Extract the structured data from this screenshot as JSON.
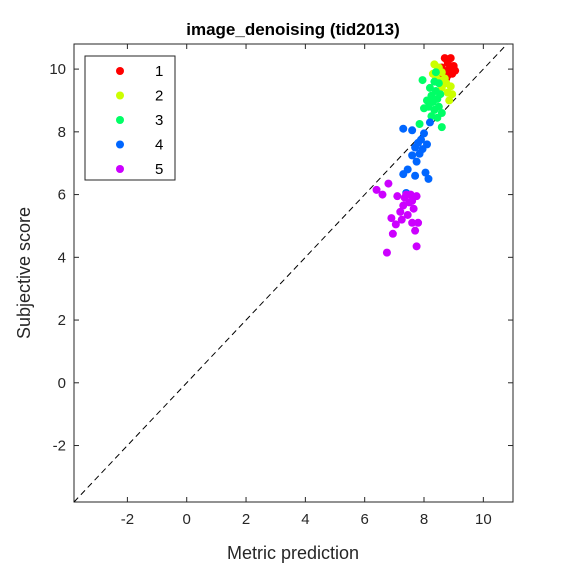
{
  "chart_data": {
    "type": "scatter",
    "title": "image_denoising (tid2013)",
    "xlabel": "Metric prediction",
    "ylabel": "Subjective score",
    "xlim": [
      -3.8,
      11
    ],
    "ylim": [
      -3.8,
      10.8
    ],
    "xticks": [
      -2,
      0,
      2,
      4,
      6,
      8,
      10
    ],
    "yticks": [
      -2,
      0,
      2,
      4,
      6,
      8,
      10
    ],
    "reference_line": "y = x (dashed)",
    "grid": false,
    "legend_position": "top-left",
    "series": [
      {
        "name": "1",
        "color": "#ff0000",
        "points": [
          [
            8.7,
            10.35
          ],
          [
            8.9,
            10.35
          ],
          [
            8.8,
            10.2
          ],
          [
            9.0,
            10.1
          ],
          [
            8.6,
            10.05
          ],
          [
            8.85,
            10.0
          ],
          [
            9.05,
            9.95
          ],
          [
            8.7,
            9.9
          ],
          [
            8.95,
            9.85
          ],
          [
            8.8,
            9.8
          ],
          [
            8.55,
            9.75
          ],
          [
            8.75,
            9.7
          ]
        ]
      },
      {
        "name": "2",
        "color": "#ccff00",
        "points": [
          [
            8.35,
            10.15
          ],
          [
            8.5,
            10.05
          ],
          [
            8.45,
            9.95
          ],
          [
            8.3,
            9.85
          ],
          [
            8.6,
            9.9
          ],
          [
            8.4,
            9.75
          ],
          [
            8.7,
            9.7
          ],
          [
            8.5,
            9.65
          ],
          [
            8.75,
            9.55
          ],
          [
            8.9,
            9.45
          ],
          [
            8.6,
            9.4
          ],
          [
            8.8,
            9.25
          ],
          [
            8.85,
            9.0
          ],
          [
            8.95,
            9.2
          ],
          [
            8.7,
            9.6
          ]
        ]
      },
      {
        "name": "3",
        "color": "#00ff66",
        "points": [
          [
            8.4,
            9.9
          ],
          [
            8.35,
            9.6
          ],
          [
            7.95,
            9.65
          ],
          [
            8.5,
            9.55
          ],
          [
            8.2,
            9.4
          ],
          [
            8.4,
            9.3
          ],
          [
            8.25,
            9.15
          ],
          [
            8.45,
            9.05
          ],
          [
            8.1,
            9.0
          ],
          [
            8.3,
            8.95
          ],
          [
            8.15,
            8.8
          ],
          [
            8.5,
            8.8
          ],
          [
            8.0,
            8.75
          ],
          [
            8.35,
            8.7
          ],
          [
            8.6,
            8.6
          ],
          [
            8.25,
            8.5
          ],
          [
            8.45,
            8.45
          ],
          [
            7.85,
            8.25
          ],
          [
            8.6,
            8.15
          ],
          [
            8.55,
            9.2
          ]
        ]
      },
      {
        "name": "4",
        "color": "#0066ff",
        "points": [
          [
            8.2,
            8.3
          ],
          [
            7.3,
            8.1
          ],
          [
            7.6,
            8.05
          ],
          [
            8.0,
            7.95
          ],
          [
            7.9,
            7.75
          ],
          [
            7.8,
            7.65
          ],
          [
            8.1,
            7.6
          ],
          [
            7.7,
            7.5
          ],
          [
            7.95,
            7.45
          ],
          [
            7.85,
            7.3
          ],
          [
            7.6,
            7.25
          ],
          [
            7.75,
            7.05
          ],
          [
            7.45,
            6.8
          ],
          [
            8.05,
            6.7
          ],
          [
            7.7,
            6.6
          ],
          [
            7.3,
            6.65
          ],
          [
            8.15,
            6.5
          ],
          [
            7.4,
            6.05
          ]
        ]
      },
      {
        "name": "5",
        "color": "#cc00ff",
        "points": [
          [
            6.4,
            6.15
          ],
          [
            6.8,
            6.35
          ],
          [
            6.6,
            6.0
          ],
          [
            7.1,
            5.95
          ],
          [
            7.4,
            6.0
          ],
          [
            7.55,
            6.0
          ],
          [
            7.75,
            5.95
          ],
          [
            7.5,
            5.75
          ],
          [
            7.6,
            5.8
          ],
          [
            7.3,
            5.65
          ],
          [
            7.65,
            5.55
          ],
          [
            7.2,
            5.45
          ],
          [
            7.45,
            5.35
          ],
          [
            6.9,
            5.25
          ],
          [
            7.25,
            5.2
          ],
          [
            7.6,
            5.1
          ],
          [
            7.05,
            5.05
          ],
          [
            7.8,
            5.1
          ],
          [
            7.7,
            4.85
          ],
          [
            6.95,
            4.75
          ],
          [
            7.75,
            4.35
          ],
          [
            6.75,
            4.15
          ],
          [
            7.35,
            5.9
          ]
        ]
      }
    ]
  }
}
